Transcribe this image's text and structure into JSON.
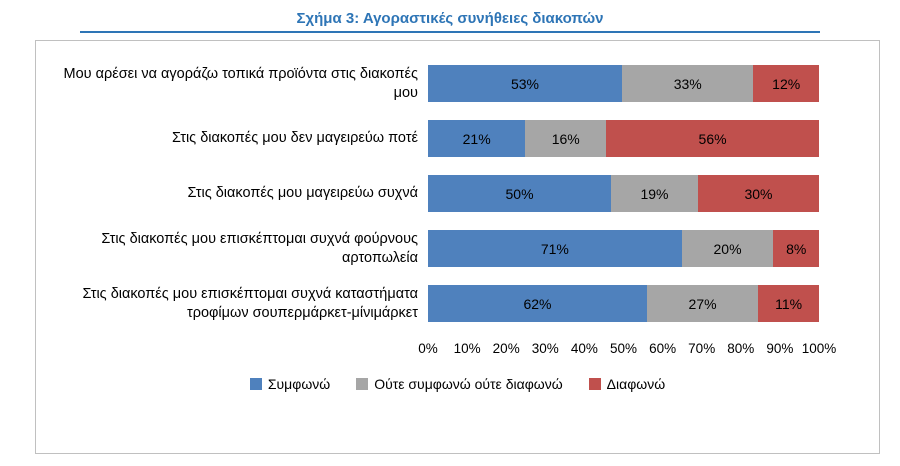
{
  "title": "Σχήμα 3: Αγοραστικές συνήθειες διακοπών",
  "colors": {
    "title": "#2E75B6",
    "agree": "#4F81BD",
    "neutral": "#A6A6A6",
    "disagree": "#C0504D",
    "border": "#C0C0C0"
  },
  "chart_data": {
    "type": "bar",
    "orientation": "horizontal-stacked",
    "title": "Σχήμα 3: Αγοραστικές συνήθειες διακοπών",
    "categories": [
      "Μου αρέσει να αγοράζω τοπικά προϊόντα στις διακοπές μου",
      "Στις διακοπές μου δεν μαγειρεύω ποτέ",
      "Στις διακοπές μου μαγειρεύω συχνά",
      "Στις διακοπές μου επισκέπτομαι συχνά φούρνους αρτοπωλεία",
      "Στις διακοπές μου επισκέπτομαι συχνά καταστήματα τροφίμων σουπερμάρκετ-μίνιμάρκετ"
    ],
    "series": [
      {
        "name": "Συμφωνώ",
        "color": "#4F81BD",
        "values": [
          53,
          21,
          50,
          71,
          62
        ]
      },
      {
        "name": "Ούτε συμφωνώ ούτε διαφωνώ",
        "color": "#A6A6A6",
        "values": [
          33,
          16,
          19,
          20,
          27
        ]
      },
      {
        "name": "Διαφωνώ",
        "color": "#C0504D",
        "values": [
          12,
          56,
          30,
          8,
          11
        ]
      }
    ],
    "value_suffix": "%",
    "x_ticks": [
      "0%",
      "10%",
      "20%",
      "30%",
      "40%",
      "50%",
      "60%",
      "70%",
      "80%",
      "90%",
      "100%"
    ],
    "xlim": [
      0,
      100
    ],
    "grid": false,
    "legend_position": "bottom"
  }
}
